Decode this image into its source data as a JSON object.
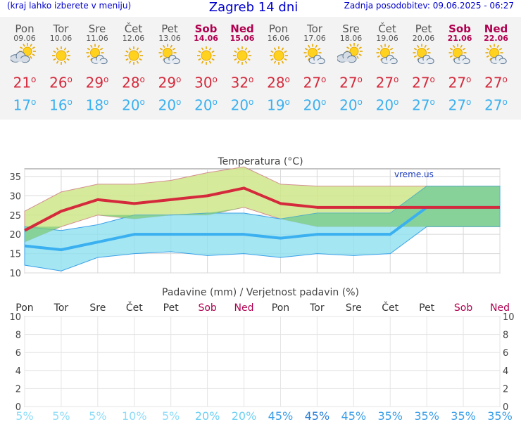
{
  "header": {
    "menu_hint": "(kraj lahko izberete v meniju)",
    "title": "Zagreb 14 dni",
    "updated": "Zadnja posodobitev: 09.06.2025 - 06:27"
  },
  "days": [
    {
      "name": "Pon",
      "date": "09.06",
      "weekend": false,
      "icon": "partly-cloudy-icon",
      "tmax": "21",
      "tmin": "17"
    },
    {
      "name": "Tor",
      "date": "10.06",
      "weekend": false,
      "icon": "sunny-icon",
      "tmax": "26",
      "tmin": "16"
    },
    {
      "name": "Sre",
      "date": "11.06",
      "weekend": false,
      "icon": "sun-cloud-icon",
      "tmax": "29",
      "tmin": "18"
    },
    {
      "name": "Čet",
      "date": "12.06",
      "weekend": false,
      "icon": "sunny-icon",
      "tmax": "28",
      "tmin": "20"
    },
    {
      "name": "Pet",
      "date": "13.06",
      "weekend": false,
      "icon": "sun-cloud-icon",
      "tmax": "29",
      "tmin": "20"
    },
    {
      "name": "Sob",
      "date": "14.06",
      "weekend": true,
      "icon": "sunny-icon",
      "tmax": "30",
      "tmin": "20"
    },
    {
      "name": "Ned",
      "date": "15.06",
      "weekend": true,
      "icon": "sunny-icon",
      "tmax": "32",
      "tmin": "20"
    },
    {
      "name": "Pon",
      "date": "16.06",
      "weekend": false,
      "icon": "sunny-icon",
      "tmax": "28",
      "tmin": "19"
    },
    {
      "name": "Tor",
      "date": "17.06",
      "weekend": false,
      "icon": "sun-cloud-icon",
      "tmax": "27",
      "tmin": "20"
    },
    {
      "name": "Sre",
      "date": "18.06",
      "weekend": false,
      "icon": "partly-cloudy-icon",
      "tmax": "27",
      "tmin": "20"
    },
    {
      "name": "Čet",
      "date": "19.06",
      "weekend": false,
      "icon": "sun-cloud-icon",
      "tmax": "27",
      "tmin": "20"
    },
    {
      "name": "Pet",
      "date": "20.06",
      "weekend": false,
      "icon": "sun-cloud-icon",
      "tmax": "27",
      "tmin": "27"
    },
    {
      "name": "Sob",
      "date": "21.06",
      "weekend": true,
      "icon": "sun-cloud-icon",
      "tmax": "27",
      "tmin": "27"
    },
    {
      "name": "Ned",
      "date": "22.06",
      "weekend": true,
      "icon": "sun-cloud-icon",
      "tmax": "27",
      "tmin": "27"
    }
  ],
  "colors": {
    "max_line": "#d42a3c",
    "min_line": "#3ab0f0",
    "max_band": "#cfe68a",
    "min_band": "#8fe0f0",
    "overlap_band": "#7ccc7a",
    "weekend": "#b0004f",
    "title_blue": "#0000cc"
  },
  "chart_data": [
    {
      "type": "area",
      "title": "Temperatura (°C)",
      "watermark": "vreme.us",
      "ylim": [
        10,
        37
      ],
      "yticks": [
        10,
        15,
        20,
        25,
        30,
        35
      ],
      "grid": true,
      "categories": [
        "Pon",
        "Tor",
        "Sre",
        "Čet",
        "Pet",
        "Sob",
        "Ned",
        "Pon",
        "Tor",
        "Sre",
        "Čet",
        "Pet",
        "Sob",
        "Ned"
      ],
      "series": [
        {
          "values": [
            21,
            26,
            29,
            28,
            29,
            30,
            32,
            28,
            27,
            27,
            27,
            27,
            27,
            27
          ]
        },
        {
          "values": [
            17,
            16,
            18,
            20,
            20,
            20,
            20,
            19,
            20,
            20,
            20,
            27,
            27,
            27
          ]
        }
      ],
      "max_band_low": [
        18,
        22,
        25,
        24,
        25,
        25,
        27,
        24,
        22,
        22,
        22,
        22,
        22,
        22
      ],
      "max_band_high": [
        26,
        31,
        33,
        33,
        34,
        36,
        37.5,
        33,
        32.5,
        32.5,
        32.5,
        32.5,
        32.5,
        32.5
      ],
      "min_band_low": [
        12,
        10.5,
        14,
        15,
        15.5,
        14.5,
        15,
        14,
        15,
        14.5,
        15,
        22,
        22,
        22
      ],
      "min_band_high": [
        22,
        21,
        22.5,
        25,
        25,
        25.5,
        25.5,
        24,
        25.5,
        25.5,
        25.5,
        32.5,
        32.5,
        32.5
      ]
    },
    {
      "type": "bar",
      "title": "Padavine (mm) / Verjetnost padavin (%)",
      "ylim": [
        0,
        10
      ],
      "yticks": [
        0,
        2,
        4,
        6,
        8,
        10
      ],
      "grid": true,
      "categories": [
        "Pon",
        "Tor",
        "Sre",
        "Čet",
        "Pet",
        "Sob",
        "Ned",
        "Pon",
        "Tor",
        "Sre",
        "Čet",
        "Pet",
        "Sob",
        "Ned"
      ],
      "series": [
        {
          "values": [
            0,
            0,
            0,
            0,
            0,
            0,
            0,
            0,
            0,
            0,
            0,
            0,
            0,
            0
          ]
        }
      ],
      "probabilities": [
        "5%",
        "5%",
        "5%",
        "10%",
        "5%",
        "20%",
        "20%",
        "45%",
        "45%",
        "45%",
        "35%",
        "35%",
        "35%",
        "35%"
      ],
      "probability_colors": [
        "#8fdcf8",
        "#8fdcf8",
        "#8fdcf8",
        "#8fdcf8",
        "#8fdcf8",
        "#6fd0f4",
        "#6fd0f4",
        "#3a9ee8",
        "#2a7fd8",
        "#3a9ee8",
        "#3a9ee8",
        "#3a9ee8",
        "#3a9ee8",
        "#3a9ee8"
      ]
    }
  ]
}
